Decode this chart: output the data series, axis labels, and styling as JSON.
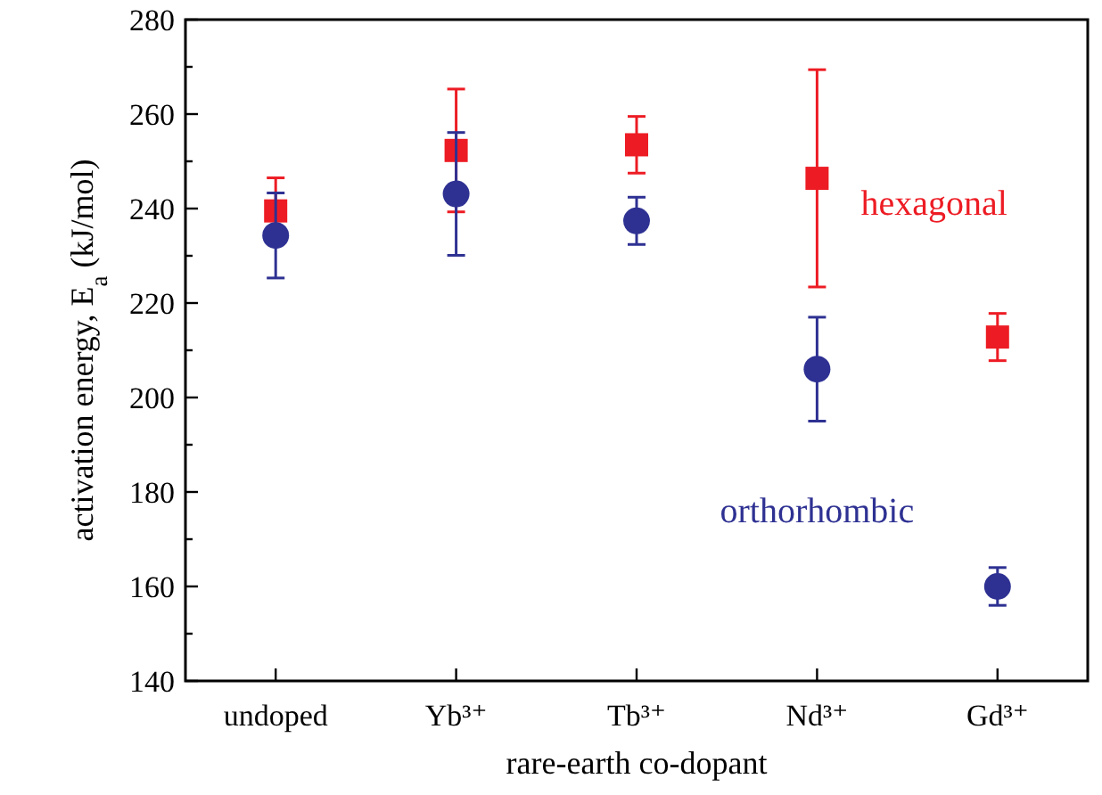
{
  "chart_data": {
    "type": "scatter",
    "xlabel": "rare-earth co-dopant",
    "ylabel": "activation energy, E$_{a}$  (kJ/mol)",
    "categories": [
      "undoped",
      "Yb³⁺",
      "Tb³⁺",
      "Nd³⁺",
      "Gd³⁺"
    ],
    "series": [
      {
        "name": "hexagonal",
        "color": "#ed1c24",
        "marker": "square",
        "values": [
          239.5,
          252.3,
          253.5,
          246.4,
          212.8
        ],
        "errors": [
          7,
          13,
          6,
          23,
          5
        ]
      },
      {
        "name": "orthorhombic",
        "color": "#2e3192",
        "marker": "circle",
        "values": [
          234.3,
          243.1,
          237.4,
          206,
          160
        ],
        "errors": [
          9,
          13,
          5,
          11,
          4
        ]
      }
    ],
    "ylim": [
      140,
      280
    ],
    "yticks": [
      140,
      {
        "value": 150,
        "label": null
      },
      160,
      {
        "value": 170,
        "label": null
      },
      180,
      {
        "value": 190,
        "label": null
      },
      200,
      {
        "value": 210,
        "label": null
      },
      220,
      {
        "value": 230,
        "label": null
      },
      240,
      {
        "value": 250,
        "label": null
      },
      260,
      {
        "value": 270,
        "label": null
      },
      280
    ],
    "grid": false,
    "legend": false
  }
}
